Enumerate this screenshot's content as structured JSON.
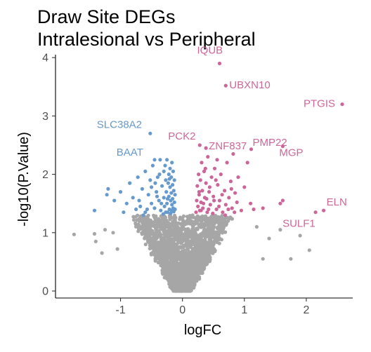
{
  "title": {
    "line1": "Draw Site DEGs",
    "line2": "Intralesional vs Peripheral"
  },
  "chart_data": {
    "type": "scatter",
    "title": "Draw Site DEGs\nIntralesional vs Peripheral",
    "xlabel": "logFC",
    "ylabel": "-log10(P.Value)",
    "xlim": [
      -2.05,
      2.75
    ],
    "ylim": [
      -0.12,
      4.05
    ],
    "x_ticks": [
      -1,
      0,
      1,
      2
    ],
    "x_tick_labels": [
      "-1",
      "0",
      "1",
      "2"
    ],
    "y_ticks": [
      0,
      1,
      2,
      3,
      4
    ],
    "y_tick_labels": [
      "0",
      "1",
      "2",
      "3",
      "4"
    ],
    "grid": false,
    "legend": "none",
    "significance_threshold": 1.3,
    "colors": {
      "down": "#6699CC",
      "up": "#CC6699",
      "ns": "#A6A6A6"
    },
    "series": [
      {
        "color_key": "down",
        "points": [
          [
            -1.2,
            1.75
          ],
          [
            -1.22,
            1.65
          ],
          [
            -1.1,
            1.55
          ],
          [
            -1.0,
            1.7
          ],
          [
            -0.9,
            1.5
          ],
          [
            -0.95,
            1.35
          ],
          [
            -0.85,
            1.85
          ],
          [
            -0.8,
            1.6
          ],
          [
            -0.75,
            1.4
          ],
          [
            -0.72,
            1.95
          ],
          [
            -0.7,
            1.55
          ],
          [
            -0.68,
            1.45
          ],
          [
            -0.65,
            1.75
          ],
          [
            -0.6,
            1.35
          ],
          [
            -0.6,
            2.05
          ],
          [
            -0.55,
            1.65
          ],
          [
            -0.52,
            1.9
          ],
          [
            -0.5,
            1.5
          ],
          [
            -0.48,
            2.15
          ],
          [
            -0.45,
            1.42
          ],
          [
            -0.45,
            2.25
          ],
          [
            -0.42,
            1.7
          ],
          [
            -0.4,
            1.95
          ],
          [
            -0.38,
            1.55
          ],
          [
            -0.36,
            2.25
          ],
          [
            -0.35,
            1.38
          ],
          [
            -0.33,
            1.8
          ],
          [
            -0.3,
            2.05
          ],
          [
            -0.3,
            1.6
          ],
          [
            -0.29,
            1.45
          ],
          [
            -0.28,
            2.15
          ],
          [
            -0.27,
            1.9
          ],
          [
            -0.26,
            1.7
          ],
          [
            -0.25,
            2.25
          ],
          [
            -0.25,
            1.5
          ],
          [
            -0.24,
            1.35
          ],
          [
            -0.23,
            1.85
          ],
          [
            -0.22,
            2.0
          ],
          [
            -0.22,
            1.62
          ],
          [
            -0.21,
            1.4
          ],
          [
            -0.2,
            2.1
          ],
          [
            -0.2,
            1.78
          ],
          [
            -0.19,
            1.55
          ],
          [
            -0.19,
            1.33
          ],
          [
            -0.18,
            1.95
          ],
          [
            -0.18,
            1.68
          ],
          [
            -0.17,
            1.48
          ],
          [
            -0.17,
            2.2
          ],
          [
            -0.16,
            1.82
          ],
          [
            -0.16,
            1.58
          ],
          [
            -0.15,
            1.42
          ],
          [
            -0.15,
            2.05
          ],
          [
            -0.14,
            1.72
          ],
          [
            -0.14,
            1.36
          ],
          [
            -0.13,
            1.9
          ],
          [
            -0.13,
            1.52
          ],
          [
            -0.12,
            1.65
          ],
          [
            -0.12,
            1.4
          ],
          [
            -0.34,
            1.5
          ],
          [
            -0.31,
            1.32
          ],
          [
            -0.41,
            1.62
          ],
          [
            -0.5,
            1.78
          ],
          [
            -0.57,
            1.4
          ],
          [
            -0.63,
            1.3
          ],
          [
            -0.27,
            1.35
          ],
          [
            -0.24,
            1.58
          ],
          [
            -0.21,
            1.92
          ],
          [
            -0.18,
            1.38
          ],
          [
            -0.44,
            1.85
          ],
          [
            -0.37,
            2.0
          ],
          [
            -1.42,
            1.38
          ],
          [
            -0.52,
            2.7
          ]
        ]
      },
      {
        "color_key": "up",
        "points": [
          [
            0.22,
            1.35
          ],
          [
            0.23,
            1.55
          ],
          [
            0.24,
            1.8
          ],
          [
            0.25,
            1.45
          ],
          [
            0.26,
            2.0
          ],
          [
            0.27,
            1.65
          ],
          [
            0.28,
            1.38
          ],
          [
            0.29,
            1.9
          ],
          [
            0.3,
            1.52
          ],
          [
            0.31,
            2.2
          ],
          [
            0.32,
            1.72
          ],
          [
            0.33,
            1.42
          ],
          [
            0.35,
            2.05
          ],
          [
            0.36,
            1.6
          ],
          [
            0.38,
            1.85
          ],
          [
            0.4,
            1.35
          ],
          [
            0.41,
            2.3
          ],
          [
            0.43,
            1.7
          ],
          [
            0.45,
            1.48
          ],
          [
            0.47,
            1.95
          ],
          [
            0.5,
            1.62
          ],
          [
            0.52,
            2.1
          ],
          [
            0.55,
            1.4
          ],
          [
            0.57,
            1.82
          ],
          [
            0.6,
            1.55
          ],
          [
            0.62,
            2.0
          ],
          [
            0.65,
            1.35
          ],
          [
            0.68,
            1.72
          ],
          [
            0.7,
            1.48
          ],
          [
            0.72,
            2.2
          ],
          [
            0.75,
            1.6
          ],
          [
            0.78,
            1.88
          ],
          [
            0.8,
            1.42
          ],
          [
            0.82,
            2.35
          ],
          [
            0.85,
            1.68
          ],
          [
            0.88,
            1.52
          ],
          [
            0.9,
            1.95
          ],
          [
            0.95,
            1.38
          ],
          [
            1.0,
            1.78
          ],
          [
            1.05,
            2.2
          ],
          [
            1.1,
            1.5
          ],
          [
            1.15,
            1.4
          ],
          [
            0.34,
            1.5
          ],
          [
            0.39,
            1.58
          ],
          [
            0.44,
            1.78
          ],
          [
            0.49,
            1.33
          ],
          [
            0.54,
            1.9
          ],
          [
            0.59,
            1.45
          ],
          [
            0.64,
            1.65
          ],
          [
            0.69,
            1.3
          ],
          [
            0.74,
            1.4
          ],
          [
            0.79,
            1.75
          ],
          [
            0.84,
            1.35
          ],
          [
            0.27,
            1.7
          ],
          [
            0.3,
            1.38
          ],
          [
            0.37,
            2.1
          ],
          [
            0.42,
            1.4
          ],
          [
            0.51,
            1.55
          ],
          [
            0.56,
            2.25
          ],
          [
            1.62,
            1.55
          ],
          [
            1.58,
            1.5
          ],
          [
            1.3,
            1.42
          ],
          [
            0.6,
            3.9
          ],
          [
            0.7,
            3.52
          ],
          [
            2.58,
            3.2
          ],
          [
            0.28,
            2.5
          ],
          [
            0.38,
            2.45
          ],
          [
            1.11,
            2.43
          ],
          [
            1.62,
            2.48
          ],
          [
            2.15,
            1.35
          ],
          [
            2.28,
            1.38
          ]
        ]
      }
    ],
    "labels": [
      {
        "text": "IQUB",
        "x": 0.6,
        "y": 3.9,
        "color_key": "up"
      },
      {
        "text": "UBXN10",
        "x": 0.7,
        "y": 3.52,
        "color_key": "up"
      },
      {
        "text": "PTGIS",
        "x": 2.58,
        "y": 3.2,
        "color_key": "up"
      },
      {
        "text": "SLC38A2",
        "x": -0.52,
        "y": 2.7,
        "color_key": "down"
      },
      {
        "text": "PCK2",
        "x": 0.28,
        "y": 2.5,
        "color_key": "up"
      },
      {
        "text": "ZNF837",
        "x": 0.38,
        "y": 2.45,
        "color_key": "up"
      },
      {
        "text": "PMP22",
        "x": 1.11,
        "y": 2.43,
        "color_key": "up"
      },
      {
        "text": "MGP",
        "x": 1.62,
        "y": 2.48,
        "color_key": "up"
      },
      {
        "text": "BAAT",
        "x": -0.52,
        "y": 2.38,
        "color_key": "down"
      },
      {
        "text": "ELN",
        "x": 2.28,
        "y": 1.38,
        "color_key": "up"
      },
      {
        "text": "SULF1",
        "x": 2.15,
        "y": 1.35,
        "color_key": "up"
      }
    ],
    "nonsignificant_cloud": {
      "color_key": "ns",
      "description_points": [
        [
          -1.75,
          0.97
        ],
        [
          -1.42,
          0.98
        ],
        [
          -1.4,
          0.85
        ],
        [
          -1.3,
          0.65
        ],
        [
          -1.25,
          1.05
        ],
        [
          -1.12,
          1.0
        ],
        [
          -1.05,
          0.72
        ],
        [
          1.58,
          1.05
        ],
        [
          1.4,
          0.9
        ],
        [
          1.2,
          1.1
        ],
        [
          1.9,
          0.95
        ],
        [
          1.75,
          0.55
        ],
        [
          2.05,
          0.7
        ],
        [
          1.3,
          0.55
        ]
      ]
    }
  }
}
